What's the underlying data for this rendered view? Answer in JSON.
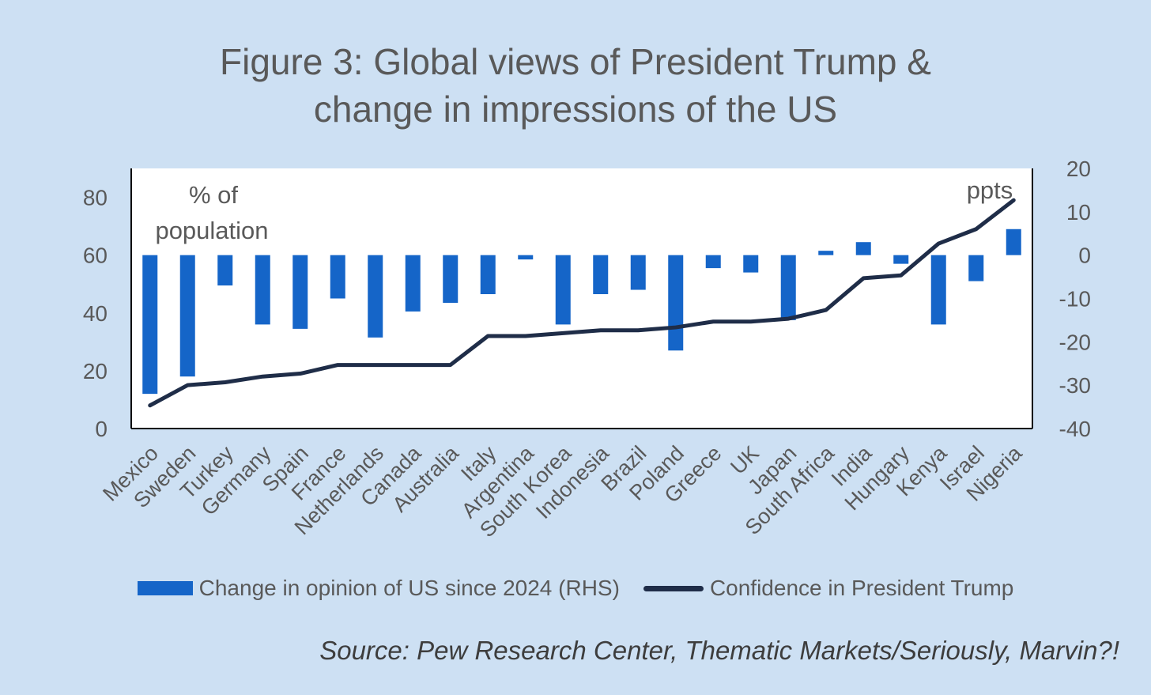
{
  "title_line1": "Figure 3: Global views of President Trump &",
  "title_line2": "change in impressions of the US",
  "source": "Source: Pew Research Center, Thematic Markets/Seriously, Marvin?!",
  "colors": {
    "background": "#cde0f3",
    "bars": "#1565c8",
    "line": "#1f2d48",
    "plot_bg": "#ffffff"
  },
  "chart_data": {
    "type": "bar+line",
    "categories": [
      "Mexico",
      "Sweden",
      "Turkey",
      "Germany",
      "Spain",
      "France",
      "Netherlands",
      "Canada",
      "Australia",
      "Italy",
      "Argentina",
      "South Korea",
      "Indonesia",
      "Brazil",
      "Poland",
      "Greece",
      "UK",
      "Japan",
      "South Africa",
      "India",
      "Hungary",
      "Kenya",
      "Israel",
      "Nigeria"
    ],
    "left_axis": {
      "label": "% of population",
      "ylim": [
        0,
        90
      ],
      "ticks": [
        0,
        20,
        40,
        60,
        80
      ]
    },
    "right_axis": {
      "label": "ppts",
      "ylim": [
        -40,
        20
      ],
      "ticks": [
        -40,
        -30,
        -20,
        -10,
        0,
        10,
        20
      ]
    },
    "series": [
      {
        "name": "Change in opinion of US since 2024 (RHS)",
        "type": "bar",
        "axis": "right",
        "values": [
          -32,
          -28,
          -7,
          -16,
          -17,
          -10,
          -19,
          -13,
          -11,
          -9,
          -1,
          -16,
          -9,
          -8,
          -22,
          -3,
          -4,
          -15,
          1,
          3,
          -2,
          -16,
          -6,
          6
        ]
      },
      {
        "name": "Confidence in President Trump",
        "type": "line",
        "axis": "left",
        "values": [
          8,
          15,
          16,
          18,
          19,
          22,
          22,
          22,
          22,
          32,
          32,
          33,
          34,
          34,
          35,
          37,
          37,
          38,
          41,
          52,
          53,
          64,
          69,
          79
        ]
      }
    ],
    "grid": false,
    "legend_position": "bottom"
  }
}
